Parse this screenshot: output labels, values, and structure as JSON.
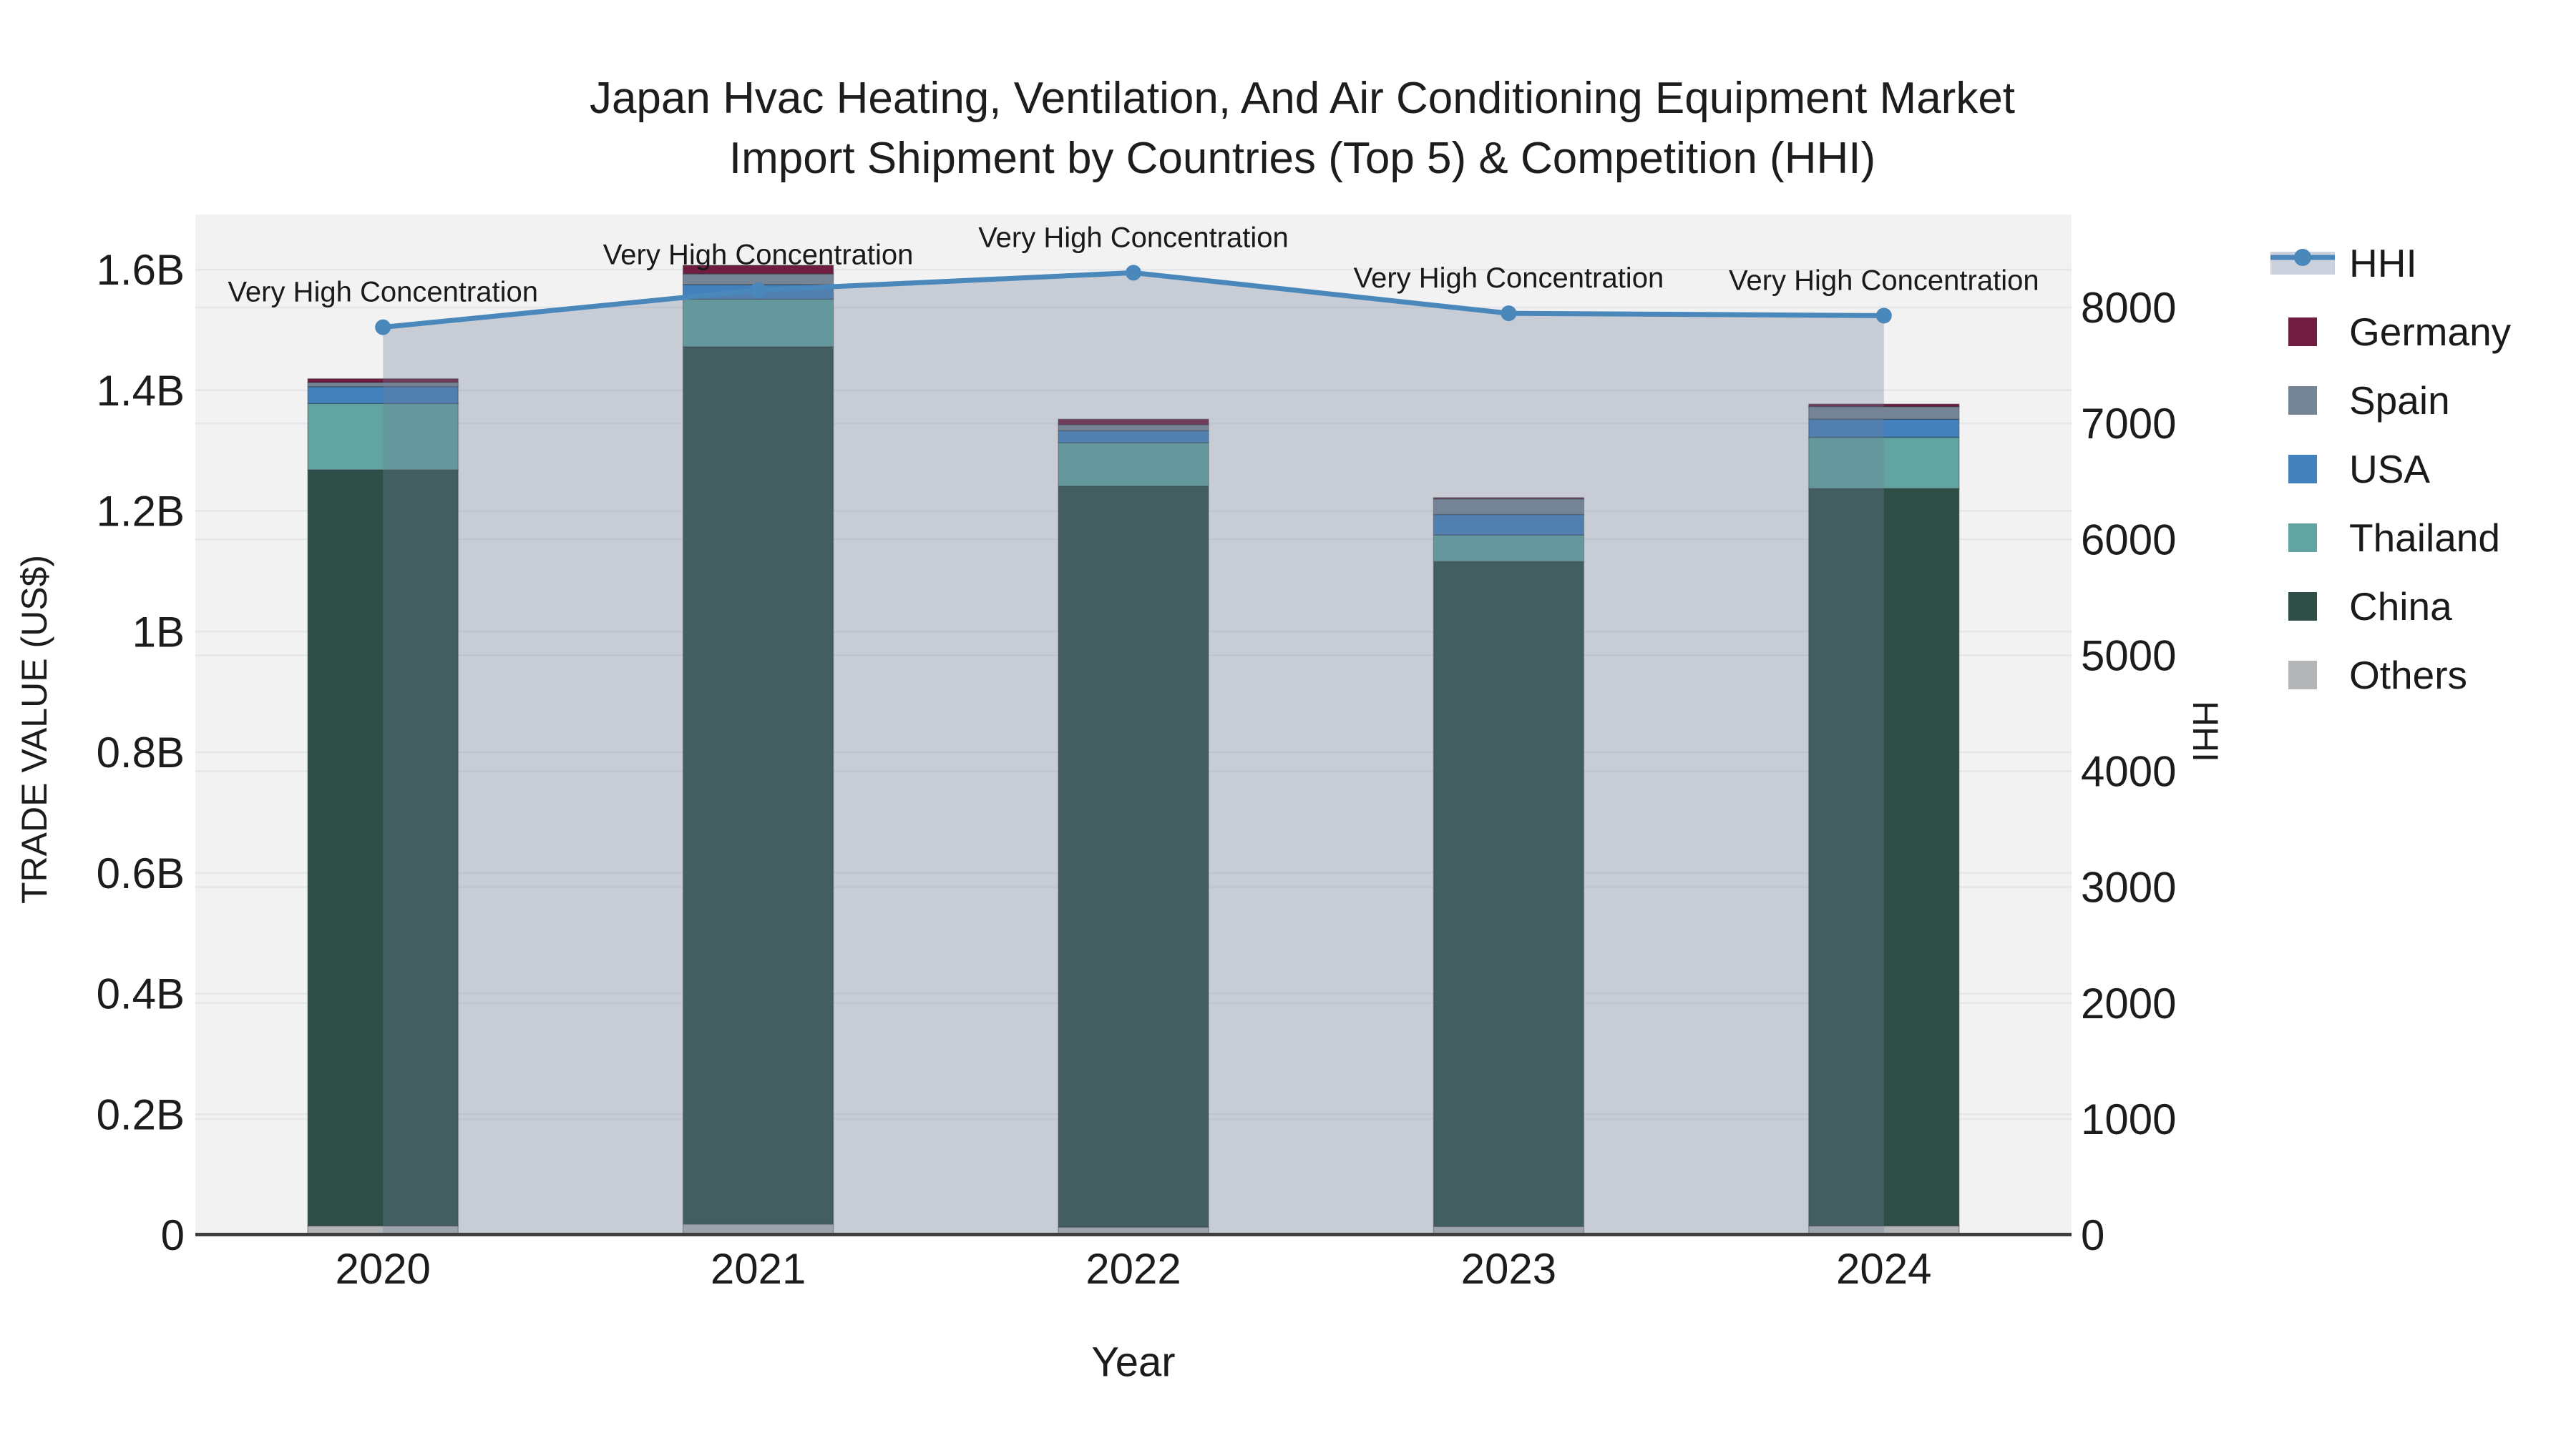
{
  "title": {
    "line1": "Japan Hvac Heating, Ventilation, And Air Conditioning Equipment Market",
    "line2": "Import Shipment by Countries (Top 5) & Competition (HHI)"
  },
  "axes": {
    "x": {
      "title": "Year",
      "categories": [
        "2020",
        "2021",
        "2022",
        "2023",
        "2024"
      ]
    },
    "left": {
      "title": "TRADE VALUE (US$)",
      "unit": "US$ billions",
      "ticks": [
        {
          "label": "0",
          "value": 0
        },
        {
          "label": "0.2B",
          "value": 0.2
        },
        {
          "label": "0.4B",
          "value": 0.4
        },
        {
          "label": "0.6B",
          "value": 0.6
        },
        {
          "label": "0.8B",
          "value": 0.8
        },
        {
          "label": "1B",
          "value": 1.0
        },
        {
          "label": "1.2B",
          "value": 1.2
        },
        {
          "label": "1.4B",
          "value": 1.4
        },
        {
          "label": "1.6B",
          "value": 1.6
        }
      ]
    },
    "right": {
      "title": "HHI",
      "ticks": [
        {
          "label": "0",
          "value": 0
        },
        {
          "label": "1000",
          "value": 1000
        },
        {
          "label": "2000",
          "value": 2000
        },
        {
          "label": "3000",
          "value": 3000
        },
        {
          "label": "4000",
          "value": 4000
        },
        {
          "label": "5000",
          "value": 5000
        },
        {
          "label": "6000",
          "value": 6000
        },
        {
          "label": "7000",
          "value": 7000
        },
        {
          "label": "8000",
          "value": 8000
        }
      ]
    }
  },
  "chart_data": {
    "type": "combo: stacked bar (left axis) + line with filled area (right axis)",
    "categories": [
      "2020",
      "2021",
      "2022",
      "2023",
      "2024"
    ],
    "bar_value_unit": "US$ billions",
    "bar_series": [
      {
        "name": "Others",
        "color": "#b3b5b6",
        "values": [
          0.015,
          0.018,
          0.013,
          0.014,
          0.015
        ]
      },
      {
        "name": "China",
        "color": "#2e4f47",
        "values": [
          1.253,
          1.454,
          1.228,
          1.102,
          1.222
        ]
      },
      {
        "name": "Thailand",
        "color": "#61a4a1",
        "values": [
          0.11,
          0.079,
          0.072,
          0.044,
          0.085
        ]
      },
      {
        "name": "USA",
        "color": "#4381bd",
        "values": [
          0.028,
          0.024,
          0.02,
          0.034,
          0.03
        ]
      },
      {
        "name": "Spain",
        "color": "#768595",
        "values": [
          0.007,
          0.018,
          0.01,
          0.026,
          0.021
        ]
      },
      {
        "name": "Germany",
        "color": "#701d41",
        "values": [
          0.006,
          0.014,
          0.009,
          0.002,
          0.004
        ]
      }
    ],
    "bar_totals": [
      1.419,
      1.607,
      1.352,
      1.222,
      1.377
    ],
    "line_series": {
      "name": "HHI",
      "color": "#4a87bb",
      "area_color": "#6f7f96",
      "area_opacity": 0.32,
      "values": [
        7830,
        8150,
        8300,
        7950,
        7930
      ]
    },
    "annotations": [
      {
        "text": "Very High Concentration",
        "category": "2020"
      },
      {
        "text": "Very High Concentration",
        "category": "2021"
      },
      {
        "text": "Very High Concentration",
        "category": "2022"
      },
      {
        "text": "Very High Concentration",
        "category": "2023"
      },
      {
        "text": "Very High Concentration",
        "category": "2024"
      }
    ]
  },
  "legend": {
    "items": [
      {
        "label": "HHI",
        "type": "line",
        "color": "#4a87bb",
        "band_color": "#ccd2dd"
      },
      {
        "label": "Germany",
        "type": "box",
        "color": "#701d41"
      },
      {
        "label": "Spain",
        "type": "box",
        "color": "#768595"
      },
      {
        "label": "USA",
        "type": "box",
        "color": "#4381bd"
      },
      {
        "label": "Thailand",
        "type": "box",
        "color": "#61a4a1"
      },
      {
        "label": "China",
        "type": "box",
        "color": "#2e4f47"
      },
      {
        "label": "Others",
        "type": "box",
        "color": "#b3b5b6"
      }
    ]
  },
  "style": {
    "plot_bg": "#f2f2f3",
    "grid_color": "#e4e6ea",
    "axis_line_color": "#3f3f3f",
    "text_color": "#1c1c1c"
  }
}
